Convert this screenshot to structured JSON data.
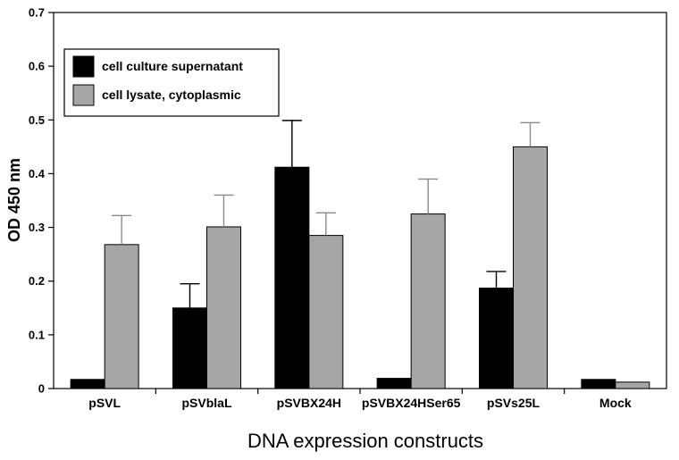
{
  "chart_data": {
    "type": "bar",
    "title": "",
    "xlabel": "DNA expression constructs",
    "ylabel": "OD 450 nm",
    "ylim": [
      0,
      0.7
    ],
    "yticks": [
      "0",
      "0.1",
      "0.2",
      "0.3",
      "0.4",
      "0.5",
      "0.6",
      "0.7"
    ],
    "legend_position": "top-left",
    "grid": false,
    "categories": [
      "pSVL",
      "pSVblaL",
      "pSVBX24H",
      "pSVBX24HSer65",
      "pSVs25L",
      "Mock"
    ],
    "series": [
      {
        "name": "cell culture supernatant",
        "color": "#000000",
        "values": [
          0.017,
          0.15,
          0.412,
          0.019,
          0.187,
          0.017
        ],
        "errors": [
          null,
          0.045,
          0.087,
          null,
          0.031,
          null
        ]
      },
      {
        "name": "cell lysate, cytoplasmic",
        "color": "#a6a6a6",
        "values": [
          0.268,
          0.301,
          0.285,
          0.325,
          0.45,
          0.012
        ],
        "errors": [
          0.054,
          0.059,
          0.042,
          0.065,
          0.045,
          null
        ]
      }
    ]
  }
}
